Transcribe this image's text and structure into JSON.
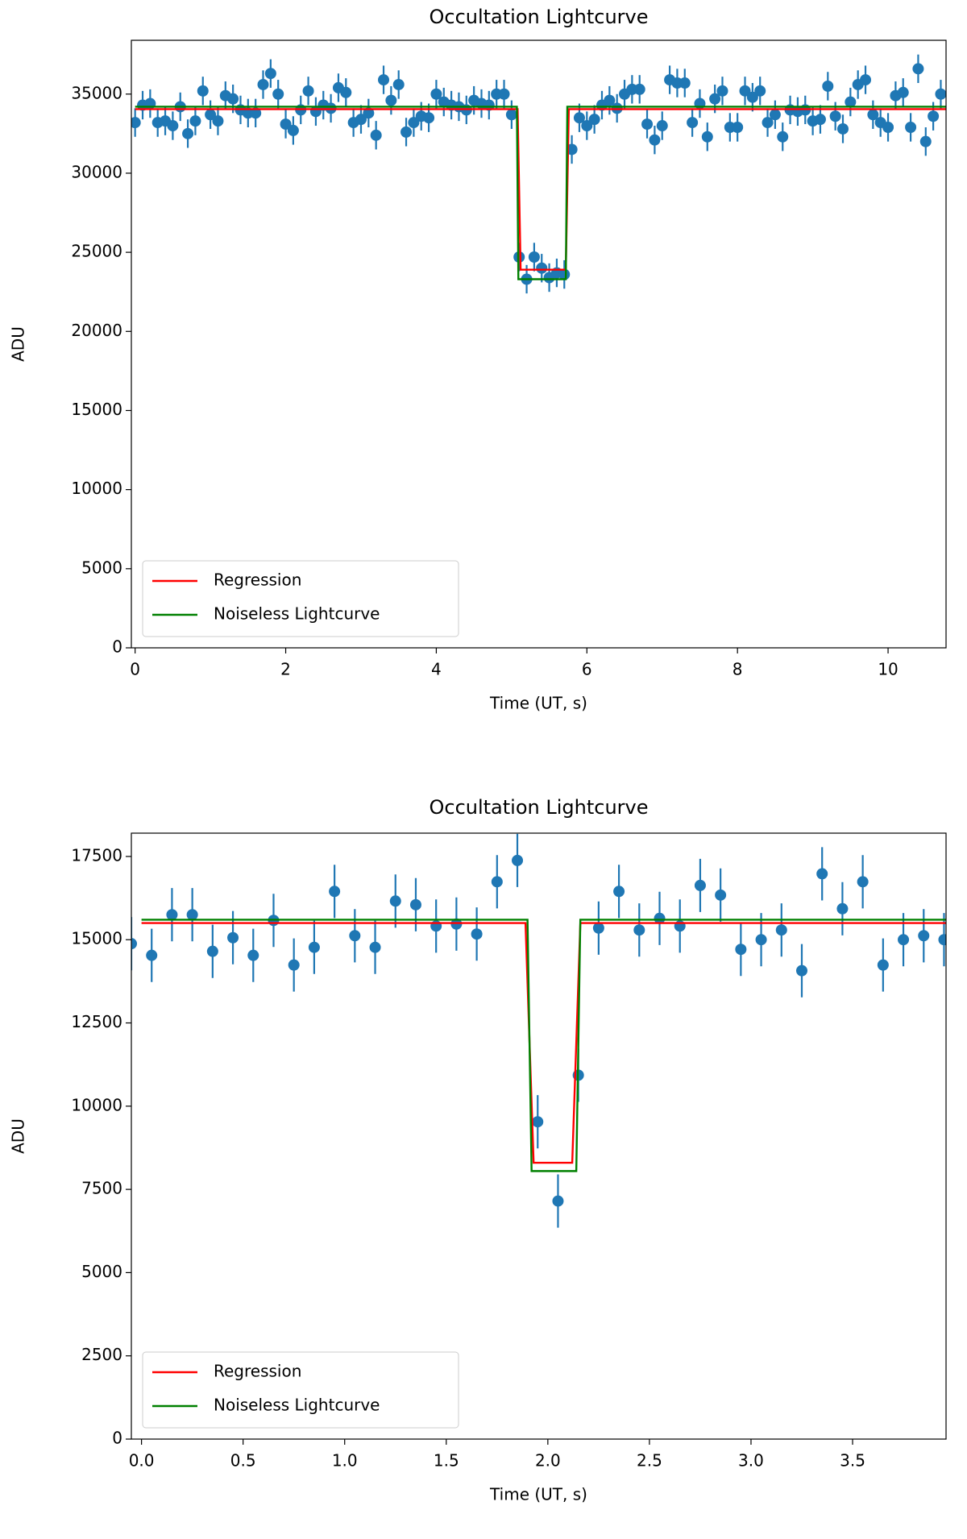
{
  "chart_data": [
    {
      "type": "errorbar",
      "title": "Occultation Lightcurve",
      "xlabel": "Time (UT, s)",
      "ylabel": "ADU",
      "xlim": [
        -0.05,
        10.77
      ],
      "ylim": [
        0,
        38400
      ],
      "xticks": [
        0,
        2,
        4,
        6,
        8,
        10
      ],
      "yticks": [
        0,
        5000,
        10000,
        15000,
        20000,
        25000,
        30000,
        35000
      ],
      "legend": "lower left",
      "points": {
        "color": "#1f77b4",
        "error": 900,
        "x": [
          0.0,
          0.1,
          0.2,
          0.3,
          0.4,
          0.5,
          0.6,
          0.7,
          0.8,
          0.9,
          1.0,
          1.1,
          1.2,
          1.3,
          1.4,
          1.5,
          1.6,
          1.7,
          1.8,
          1.9,
          2.0,
          2.1,
          2.2,
          2.3,
          2.4,
          2.5,
          2.6,
          2.7,
          2.8,
          2.9,
          3.0,
          3.1,
          3.2,
          3.3,
          3.4,
          3.5,
          3.6,
          3.7,
          3.8,
          3.9,
          4.0,
          4.1,
          4.2,
          4.3,
          4.4,
          4.5,
          4.6,
          4.7,
          4.8,
          4.9,
          5.0,
          5.1,
          5.2,
          5.3,
          5.4,
          5.5,
          5.6,
          5.7,
          5.8,
          5.9,
          6.0,
          6.1,
          6.2,
          6.3,
          6.4,
          6.5,
          6.6,
          6.7,
          6.8,
          6.9,
          7.0,
          7.1,
          7.2,
          7.3,
          7.4,
          7.5,
          7.6,
          7.7,
          7.8,
          7.9,
          8.0,
          8.1,
          8.2,
          8.3,
          8.4,
          8.5,
          8.6,
          8.7,
          8.8,
          8.9,
          9.0,
          9.1,
          9.2,
          9.3,
          9.4,
          9.5,
          9.6,
          9.7,
          9.8,
          9.9,
          10.0,
          10.1,
          10.2,
          10.3,
          10.4,
          10.5,
          10.6,
          10.7
        ],
        "values": [
          33200,
          34300,
          34400,
          33200,
          33300,
          33000,
          34200,
          32500,
          33300,
          35200,
          33700,
          33300,
          34900,
          34700,
          34000,
          33800,
          33800,
          35600,
          36300,
          35000,
          33100,
          32700,
          34000,
          35200,
          33900,
          34300,
          34100,
          35400,
          35100,
          33200,
          33400,
          33800,
          32400,
          35900,
          34600,
          35600,
          32600,
          33200,
          33600,
          33500,
          35000,
          34500,
          34300,
          34200,
          34000,
          34600,
          34400,
          34300,
          35000,
          35000,
          33700,
          24700,
          23300,
          24700,
          24000,
          23400,
          23700,
          23600,
          31500,
          33500,
          33000,
          33400,
          34300,
          34600,
          34100,
          35000,
          35300,
          35300,
          33100,
          32100,
          33000,
          35900,
          35700,
          35700,
          33200,
          34400,
          32300,
          34700,
          35200,
          32900,
          32900,
          35200,
          34800,
          35200,
          33200,
          33700,
          32300,
          34000,
          33900,
          34000,
          33300,
          33400,
          35500,
          33600,
          32800,
          34500,
          35600,
          35900,
          33700,
          33200,
          32900,
          34900,
          35100,
          32900,
          36600,
          32000,
          33600,
          35000
        ]
      },
      "series": [
        {
          "name": "Regression",
          "color": "#ff0000",
          "x": [
            0,
            5.08,
            5.12,
            5.72,
            5.76,
            10.77
          ],
          "values": [
            34050,
            34050,
            23900,
            23900,
            34050,
            34050
          ]
        },
        {
          "name": "Noiseless Lightcurve",
          "color": "#008000",
          "x": [
            0,
            5.07,
            5.09,
            5.72,
            5.74,
            10.77
          ],
          "values": [
            34200,
            34200,
            23300,
            23300,
            34200,
            34200
          ]
        }
      ]
    },
    {
      "type": "errorbar",
      "title": "Occultation Lightcurve",
      "xlabel": "Time (UT, s)",
      "ylabel": "ADU",
      "xlim": [
        -0.05,
        3.96
      ],
      "ylim": [
        0,
        18200
      ],
      "xticks": [
        {
          "value": 0,
          "label": "0.0"
        },
        0.5,
        {
          "value": 1,
          "label": "1.0"
        },
        1.5,
        {
          "value": 2,
          "label": "2.0"
        },
        2.5,
        {
          "value": 3,
          "label": "3.0"
        },
        3.5
      ],
      "yticks": [
        0,
        2500,
        5000,
        7500,
        10000,
        12500,
        15000,
        17500
      ],
      "legend": "lower left",
      "points": {
        "color": "#1f77b4",
        "error": 800,
        "x": [
          -0.05,
          0.05,
          0.15,
          0.25,
          0.35,
          0.45,
          0.55,
          0.65,
          0.75,
          0.85,
          0.95,
          1.05,
          1.15,
          1.25,
          1.35,
          1.45,
          1.55,
          1.65,
          1.75,
          1.85,
          1.95,
          2.05,
          2.15,
          2.25,
          2.35,
          2.45,
          2.55,
          2.65,
          2.75,
          2.85,
          2.95,
          3.05,
          3.15,
          3.25,
          3.35,
          3.45,
          3.55,
          3.65,
          3.75,
          3.85,
          3.95
        ],
        "values": [
          14880,
          14530,
          15750,
          15750,
          14650,
          15060,
          14530,
          15580,
          14240,
          14770,
          16450,
          15120,
          14770,
          16160,
          16050,
          15410,
          15470,
          15170,
          16740,
          17380,
          9530,
          7150,
          10930,
          15350,
          16450,
          15290,
          15640,
          15410,
          16630,
          16340,
          14710,
          15000,
          15290,
          14070,
          16980,
          15930,
          16740,
          14240,
          15000,
          15120,
          15000
        ]
      },
      "series": [
        {
          "name": "Regression",
          "color": "#ff0000",
          "x": [
            0,
            1.89,
            1.93,
            2.12,
            2.16,
            3.96
          ],
          "values": [
            15500,
            15500,
            8300,
            8300,
            15500,
            15500
          ]
        },
        {
          "name": "Noiseless Lightcurve",
          "color": "#008000",
          "x": [
            0,
            1.9,
            1.92,
            2.14,
            2.16,
            3.96
          ],
          "values": [
            15600,
            15600,
            8050,
            8050,
            15600,
            15600
          ]
        }
      ]
    }
  ]
}
